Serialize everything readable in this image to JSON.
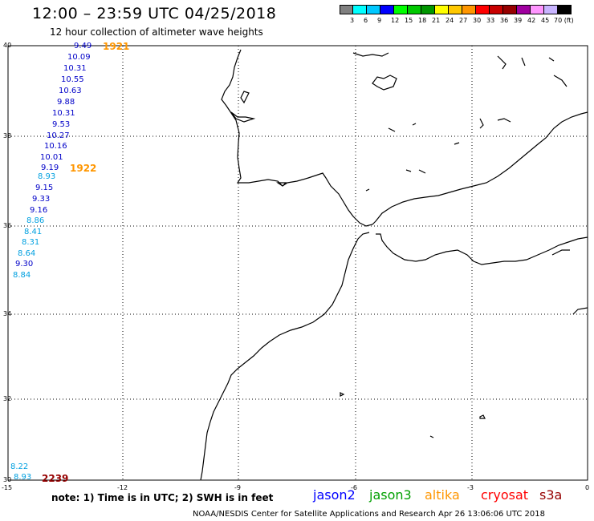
{
  "header": {
    "title": "12:00 – 23:59 UTC 04/25/2018",
    "subtitle": "12 hour collection of altimeter wave heights"
  },
  "colorbar": {
    "colors": [
      "#808080",
      "#00ffff",
      "#00c8ff",
      "#0000ff",
      "#00ff00",
      "#00c800",
      "#009600",
      "#ffff00",
      "#ffc800",
      "#ff9600",
      "#ff0000",
      "#c80000",
      "#960000",
      "#a000a0",
      "#ff96ff",
      "#c8b4ff",
      "#000000"
    ],
    "labels": [
      "3",
      "6",
      "9",
      "12",
      "15",
      "18",
      "21",
      "24",
      "27",
      "30",
      "33",
      "36",
      "39",
      "42",
      "45",
      "70 (ft)"
    ]
  },
  "axes": {
    "lat_ticks": [
      "40",
      "38",
      "36",
      "34",
      "32",
      "30"
    ],
    "lon_ticks": [
      "-15",
      "-12",
      "-9",
      "-6",
      "-3",
      "0"
    ]
  },
  "wave_heights": [
    {
      "value": "9.49",
      "color": "#0000c8"
    },
    {
      "value": "10.09",
      "color": "#0000c8"
    },
    {
      "value": "10.31",
      "color": "#0000c8"
    },
    {
      "value": "10.55",
      "color": "#0000c8"
    },
    {
      "value": "10.63",
      "color": "#0000c8"
    },
    {
      "value": "9.88",
      "color": "#0000c8"
    },
    {
      "value": "10.31",
      "color": "#0000c8"
    },
    {
      "value": "9.53",
      "color": "#0000c8"
    },
    {
      "value": "10.27",
      "color": "#0000c8"
    },
    {
      "value": "10.16",
      "color": "#0000c8"
    },
    {
      "value": "10.01",
      "color": "#0000c8"
    },
    {
      "value": "9.19",
      "color": "#0000c8"
    },
    {
      "value": "8.93",
      "color": "#00a0e0"
    },
    {
      "value": "9.15",
      "color": "#0000c8"
    },
    {
      "value": "9.33",
      "color": "#0000c8"
    },
    {
      "value": "9.16",
      "color": "#0000c8"
    },
    {
      "value": "8.86",
      "color": "#00a0e0"
    },
    {
      "value": "8.41",
      "color": "#00a0e0"
    },
    {
      "value": "8.31",
      "color": "#00a0e0"
    },
    {
      "value": "8.64",
      "color": "#00a0e0"
    },
    {
      "value": "9.30",
      "color": "#0000c8"
    },
    {
      "value": "8.84",
      "color": "#00a0e0"
    },
    {
      "value": "8.22",
      "color": "#00a0e0"
    },
    {
      "value": "8.93",
      "color": "#00a0e0"
    }
  ],
  "orbit_times": [
    {
      "value": "1921",
      "color": "#ff9600"
    },
    {
      "value": "1922",
      "color": "#ff9600"
    },
    {
      "value": "2239",
      "color": "#960000"
    }
  ],
  "footer": {
    "note": "note:  1) Time is in UTC;  2) SWH is in feet",
    "credit": "NOAA/NESDIS Center for Satellite Applications and Research    Apr 26 13:06:06 UTC 2018"
  },
  "legend": [
    {
      "name": "jason2",
      "color": "#0000ff"
    },
    {
      "name": "jason3",
      "color": "#00a000"
    },
    {
      "name": "altika",
      "color": "#ff9600"
    },
    {
      "name": "cryosat",
      "color": "#ff0000"
    },
    {
      "name": "s3a",
      "color": "#960000"
    }
  ]
}
